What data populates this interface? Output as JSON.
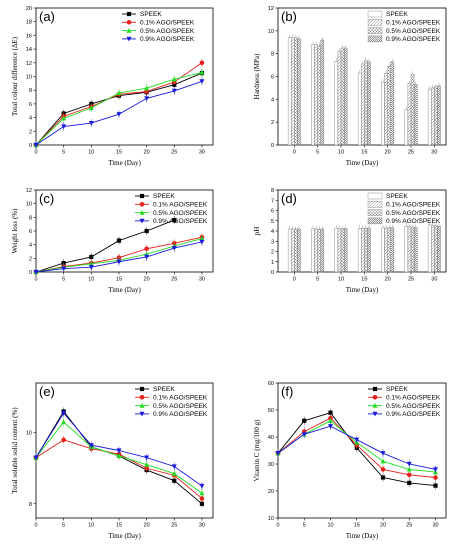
{
  "colors": {
    "SPEEK": "#000000",
    "0.1": "#e8201c",
    "0.5": "#22dd22",
    "0.9": "#1a1adf"
  },
  "chart_data": [
    {
      "panel": "(a)",
      "type": "line",
      "xlabel": "Time (Day)",
      "ylabel": "Total colour difference (ΔE)",
      "xlim": [
        0,
        32
      ],
      "ylim": [
        0,
        20
      ],
      "xticks": [
        0,
        5,
        10,
        15,
        20,
        25,
        30
      ],
      "yticks": [
        0,
        2,
        4,
        6,
        8,
        10,
        12,
        14,
        16,
        18,
        20
      ],
      "legend": "top-left",
      "x": [
        0,
        5,
        10,
        15,
        20,
        25,
        30
      ],
      "series": [
        {
          "name": "SPEEK",
          "color": "#000000",
          "marker": "square",
          "values": [
            0,
            4.6,
            6.0,
            7.2,
            7.7,
            8.8,
            10.5
          ]
        },
        {
          "name": "0.1%  AGO/SPEEK",
          "color": "#e8201c",
          "marker": "circle",
          "values": [
            0,
            4.2,
            5.6,
            7.4,
            7.8,
            9.2,
            12.0
          ]
        },
        {
          "name": "0.5%  AGO/SPEEK",
          "color": "#22dd22",
          "marker": "triangle",
          "values": [
            0,
            3.9,
            5.4,
            7.6,
            8.3,
            9.6,
            10.6
          ]
        },
        {
          "name": "0.9%  AGO/SPEEK",
          "color": "#1a1adf",
          "marker": "triangle-down",
          "values": [
            0,
            2.7,
            3.2,
            4.5,
            6.8,
            7.9,
            9.3
          ]
        }
      ]
    },
    {
      "panel": "(b)",
      "type": "bar",
      "xlabel": "Time (Day)",
      "ylabel": "Hardness (MPa)",
      "xlim": [
        -3.5,
        32.5
      ],
      "ylim": [
        0,
        12
      ],
      "xticks": [
        0,
        5,
        10,
        15,
        20,
        25,
        30
      ],
      "yticks": [
        0,
        2,
        4,
        6,
        8,
        10,
        12
      ],
      "legend": "top-right",
      "categories": [
        0,
        5,
        10,
        15,
        20,
        25,
        30
      ],
      "series": [
        {
          "name": "SPEEK",
          "pattern": "blank",
          "values": [
            9.4,
            8.8,
            7.3,
            6.3,
            5.5,
            3.1,
            4.9
          ]
        },
        {
          "name": "0.1%  AGO/SPEEK",
          "pattern": "diag",
          "values": [
            9.4,
            8.8,
            8.2,
            7.1,
            6.3,
            5.4,
            5.0
          ]
        },
        {
          "name": "0.5%  AGO/SPEEK",
          "pattern": "cross",
          "values": [
            9.4,
            8.7,
            8.5,
            7.4,
            6.9,
            6.2,
            5.1
          ]
        },
        {
          "name": "0.9%  AGO/SPEEK",
          "pattern": "dense",
          "values": [
            9.3,
            9.2,
            8.5,
            7.3,
            7.3,
            5.3,
            5.2
          ]
        }
      ]
    },
    {
      "panel": "(c)",
      "type": "line",
      "xlabel": "Time (Day)",
      "ylabel": "Weight loss  (%)",
      "xlim": [
        0,
        32
      ],
      "ylim": [
        0,
        12
      ],
      "xticks": [
        0,
        5,
        10,
        15,
        20,
        25,
        30
      ],
      "yticks": [
        0,
        2,
        4,
        6,
        8,
        10,
        12
      ],
      "legend": "top-right",
      "x": [
        0,
        5,
        10,
        15,
        20,
        25,
        30
      ],
      "series": [
        {
          "name": "SPEEK",
          "color": "#000000",
          "marker": "square",
          "values": [
            0,
            1.3,
            2.2,
            4.6,
            6.0,
            7.6,
            null
          ]
        },
        {
          "name": "0.1%  AGO/SPEEK",
          "color": "#e8201c",
          "marker": "circle",
          "values": [
            0,
            0.8,
            1.3,
            2.1,
            3.4,
            4.2,
            5.1
          ]
        },
        {
          "name": "0.5%  AGO/SPEEK",
          "color": "#22dd22",
          "marker": "triangle",
          "values": [
            0,
            0.7,
            1.2,
            1.7,
            2.6,
            3.8,
            4.9
          ]
        },
        {
          "name": "0.9%  AGO/SPEEK",
          "color": "#1a1adf",
          "marker": "triangle-down",
          "values": [
            0,
            0.5,
            0.7,
            1.5,
            2.2,
            3.5,
            4.4
          ]
        }
      ]
    },
    {
      "panel": "(d)",
      "type": "bar",
      "xlabel": "Time (Day)",
      "ylabel": "pH",
      "xlim": [
        -3.5,
        32.5
      ],
      "ylim": [
        0,
        8
      ],
      "xticks": [
        0,
        5,
        10,
        15,
        20,
        25,
        30
      ],
      "yticks": [
        0,
        1,
        2,
        3,
        4,
        5,
        6,
        7,
        8
      ],
      "legend": "top-right",
      "categories": [
        0,
        5,
        10,
        15,
        20,
        25,
        30
      ],
      "series": [
        {
          "name": "SPEEK",
          "pattern": "blank",
          "values": [
            4.2,
            4.22,
            4.28,
            4.27,
            4.3,
            4.45,
            4.6
          ]
        },
        {
          "name": "0.1%  AGO/SPEEK",
          "pattern": "diag",
          "values": [
            4.2,
            4.2,
            4.25,
            4.25,
            4.3,
            4.4,
            4.55
          ]
        },
        {
          "name": "0.5%  AGO/SPEEK",
          "pattern": "cross",
          "values": [
            4.2,
            4.18,
            4.22,
            4.28,
            4.32,
            4.38,
            4.5
          ]
        },
        {
          "name": "0.9%  AGO/SPEEK",
          "pattern": "dense",
          "values": [
            4.2,
            4.2,
            4.25,
            4.3,
            4.33,
            4.35,
            4.45
          ]
        }
      ]
    },
    {
      "panel": "(e)",
      "type": "line",
      "xlabel": "Time (Day)",
      "ylabel": "Total soluble solid content (%)",
      "xlim": [
        0,
        32
      ],
      "ylim": [
        7.6,
        11.4
      ],
      "xticks": [
        0,
        5,
        10,
        15,
        20,
        25,
        30
      ],
      "yticks": [
        8,
        10
      ],
      "legend": "top-right",
      "x": [
        0,
        5,
        10,
        15,
        20,
        25,
        30
      ],
      "series": [
        {
          "name": "SPEEK",
          "color": "#000000",
          "marker": "square",
          "values": [
            9.3,
            10.6,
            9.6,
            9.35,
            8.95,
            8.65,
            8.0
          ]
        },
        {
          "name": "0.1%  AGO/SPEEK",
          "color": "#e8201c",
          "marker": "circle",
          "values": [
            9.3,
            9.8,
            9.55,
            9.4,
            9.0,
            8.8,
            8.15
          ]
        },
        {
          "name": "0.5%  AGO/SPEEK",
          "color": "#22dd22",
          "marker": "triangle",
          "values": [
            9.3,
            10.3,
            9.6,
            9.35,
            9.1,
            8.85,
            8.3
          ]
        },
        {
          "name": "0.9%  AGO/SPEEK",
          "color": "#1a1adf",
          "marker": "triangle-down",
          "values": [
            9.3,
            10.55,
            9.65,
            9.5,
            9.3,
            9.05,
            8.5
          ]
        }
      ]
    },
    {
      "panel": "(f)",
      "type": "line",
      "xlabel": "Time (Day)",
      "ylabel": "Vitamin C (mg/100 g)",
      "xlim": [
        0,
        32
      ],
      "ylim": [
        10,
        60
      ],
      "xticks": [
        0,
        5,
        10,
        15,
        20,
        25,
        30
      ],
      "yticks": [
        10,
        20,
        30,
        40,
        50,
        60
      ],
      "legend": "top-right",
      "x": [
        0,
        5,
        10,
        15,
        20,
        25,
        30
      ],
      "series": [
        {
          "name": "SPEEK",
          "color": "#000000",
          "marker": "square",
          "values": [
            34,
            46,
            49,
            36,
            25,
            23,
            22
          ]
        },
        {
          "name": "0.1%  AGO/SPEEK",
          "color": "#e8201c",
          "marker": "circle",
          "values": [
            34,
            42,
            47,
            37,
            28,
            26,
            25
          ]
        },
        {
          "name": "0.5%  AGO/SPEEK",
          "color": "#22dd22",
          "marker": "triangle",
          "values": [
            34,
            41,
            46,
            38,
            31,
            28,
            27
          ]
        },
        {
          "name": "0.9%  AGO/SPEEK",
          "color": "#1a1adf",
          "marker": "triangle-down",
          "values": [
            34,
            41,
            44,
            39,
            34,
            30,
            28
          ]
        }
      ]
    }
  ]
}
